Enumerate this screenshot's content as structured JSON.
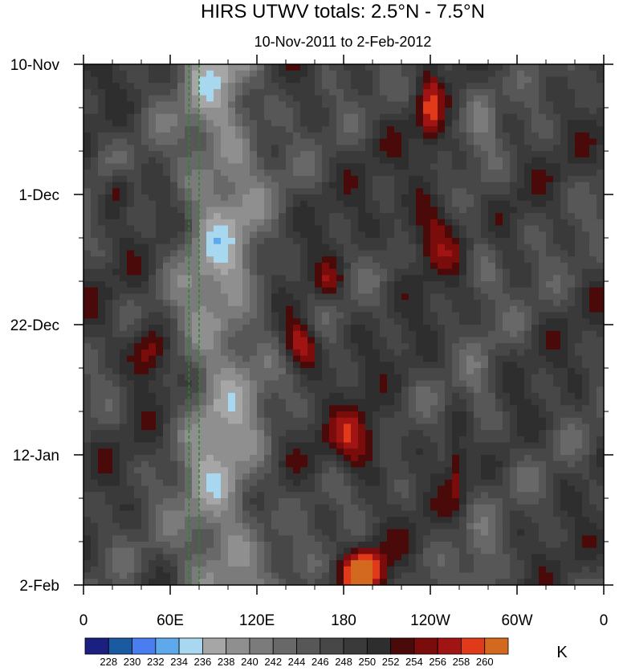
{
  "chart_data": {
    "type": "heatmap",
    "title": "HIRS UTWV totals: 2.5°N - 7.5°N",
    "subtitle": "10-Nov-2011 to 2-Feb-2012",
    "x_ticks": [
      {
        "lon": 0,
        "label": "0"
      },
      {
        "lon": 60,
        "label": "60E"
      },
      {
        "lon": 120,
        "label": "120E"
      },
      {
        "lon": 180,
        "label": "180"
      },
      {
        "lon": 240,
        "label": "120W"
      },
      {
        "lon": 300,
        "label": "60W"
      },
      {
        "lon": 360,
        "label": "0"
      }
    ],
    "x_range": [
      0,
      360
    ],
    "y_ticks": [
      {
        "day": 0,
        "label": "10-Nov"
      },
      {
        "day": 21,
        "label": "1-Dec"
      },
      {
        "day": 42,
        "label": "22-Dec"
      },
      {
        "day": 63,
        "label": "12-Jan"
      },
      {
        "day": 84,
        "label": "2-Feb"
      }
    ],
    "y_range_days": [
      0,
      84
    ],
    "y_reversed": true,
    "colorbar": {
      "unit": "K",
      "levels": [
        228,
        230,
        232,
        234,
        236,
        238,
        240,
        242,
        244,
        246,
        248,
        250,
        252,
        254,
        256,
        258,
        260
      ],
      "colors": [
        "#1a1f80",
        "#1a5aa0",
        "#4a7ef0",
        "#5ea8ec",
        "#a8d8f0",
        "#a6a6a6",
        "#8f8f8f",
        "#7b7b7b",
        "#686868",
        "#575757",
        "#474747",
        "#3a3a3a",
        "#2e2e2e",
        "#4a0a0a",
        "#7a0c0c",
        "#a01414",
        "#e03a1a",
        "#d2691e"
      ]
    },
    "reference_lines": [
      {
        "lon": 73,
        "color": "#228b22",
        "style": "dashed"
      },
      {
        "lon": 80,
        "color": "#228b22",
        "style": "dashed"
      }
    ],
    "grid": false
  }
}
